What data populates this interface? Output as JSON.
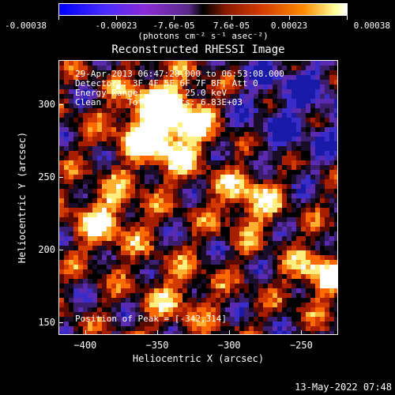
{
  "colorbar": {
    "tick_labels": [
      "-0.00038",
      "-0.00023",
      "-7.6e-05",
      "7.6e-05",
      "0.00023",
      "0.00038"
    ],
    "units": "(photons cm⁻² s⁻¹ asec⁻²)",
    "colors": [
      "#0000ff",
      "#4a2cff",
      "#8a2bd6",
      "#000000",
      "#d23a00",
      "#ff8a00",
      "#ffffff"
    ]
  },
  "chart_data": {
    "type": "heatmap",
    "title": "Reconstructed RHESSI Image",
    "xlabel": "Heliocentric X (arcsec)",
    "ylabel": "Heliocentric Y (arcsec)",
    "xlim": [
      -418,
      -225
    ],
    "ylim": [
      142,
      330
    ],
    "x_ticks": [
      -400,
      -350,
      -300,
      -250
    ],
    "y_ticks": [
      150,
      200,
      250,
      300
    ],
    "peak": [
      -342,
      314
    ],
    "annotations": {
      "time_range": "29-Apr-2013 06:47:28.000 to 06:53:08.000",
      "detectors": "Detectors: 3F 4F 5F 6F 7F 8F, Att 0",
      "energy": "Energy Range: 12.0 - 25.0 keV",
      "clean": "Clean     Total counts: 6.83E+03",
      "peak_text": "Position of Peak = [-342,314]"
    }
  },
  "footer_timestamp": "13-May-2022 07:48"
}
